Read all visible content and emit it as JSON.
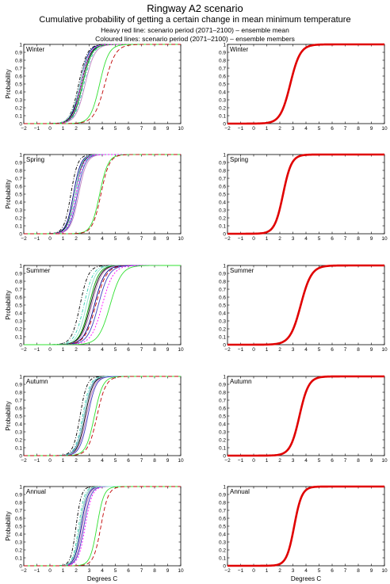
{
  "header": {
    "title": "Ringway A2 scenario",
    "subtitle": "Cumulative probability of getting a certain change in mean minimum temperature",
    "line1": "Heavy red line: scenario period (2071–2100) – ensemble mean",
    "line2": "Coloured lines: scenario period (2071–2100) – ensemble members"
  },
  "chart_data": {
    "type": "line",
    "xlabel": "Degrees C",
    "ylabel": "Probability",
    "xlim": [
      -2,
      10
    ],
    "ylim": [
      0,
      1
    ],
    "xticks": [
      "−2",
      "−1",
      "0",
      "1",
      "2",
      "3",
      "4",
      "5",
      "6",
      "7",
      "8",
      "9",
      "10"
    ],
    "yticks": [
      "0",
      "0.1",
      "0.2",
      "0.3",
      "0.4",
      "0.5",
      "0.6",
      "0.7",
      "0.8",
      "0.9",
      "1"
    ],
    "panels": [
      {
        "season": "Winter",
        "ensemble_mean": {
          "median": 2.8,
          "spread": 0.65,
          "color": "#e00000"
        },
        "members": [
          {
            "median": 2.3,
            "spread": 0.55,
            "color": "#00008b",
            "dash": ""
          },
          {
            "median": 2.4,
            "spread": 0.6,
            "color": "#000000",
            "dash": ""
          },
          {
            "median": 2.2,
            "spread": 0.55,
            "color": "#000000",
            "dash": "4,2,1,2"
          },
          {
            "median": 2.5,
            "spread": 0.58,
            "color": "#4040c0",
            "dash": ""
          },
          {
            "median": 2.6,
            "spread": 0.6,
            "color": "#30d0b0",
            "dash": "4,2,1,2"
          },
          {
            "median": 2.3,
            "spread": 0.6,
            "color": "#90e0d0",
            "dash": ""
          },
          {
            "median": 2.7,
            "spread": 0.62,
            "color": "#c080c0",
            "dash": ""
          },
          {
            "median": 2.5,
            "spread": 0.6,
            "color": "#00a000",
            "dash": ""
          },
          {
            "median": 2.4,
            "spread": 0.56,
            "color": "#ff00ff",
            "dash": "2,2"
          },
          {
            "median": 3.8,
            "spread": 0.6,
            "color": "#30e030",
            "dash": ""
          },
          {
            "median": 4.2,
            "spread": 0.7,
            "color": "#c00000",
            "dash": "5,3"
          }
        ]
      },
      {
        "season": "Spring",
        "ensemble_mean": {
          "median": 2.25,
          "spread": 0.55,
          "color": "#e00000"
        },
        "members": [
          {
            "median": 1.6,
            "spread": 0.45,
            "color": "#000000",
            "dash": "4,2,1,2"
          },
          {
            "median": 1.8,
            "spread": 0.48,
            "color": "#00008b",
            "dash": ""
          },
          {
            "median": 1.9,
            "spread": 0.5,
            "color": "#000000",
            "dash": ""
          },
          {
            "median": 2.0,
            "spread": 0.5,
            "color": "#30d0b0",
            "dash": "4,2,1,2"
          },
          {
            "median": 2.1,
            "spread": 0.5,
            "color": "#4040c0",
            "dash": ""
          },
          {
            "median": 2.2,
            "spread": 0.52,
            "color": "#c080c0",
            "dash": ""
          },
          {
            "median": 1.9,
            "spread": 0.46,
            "color": "#90e0d0",
            "dash": ""
          },
          {
            "median": 2.0,
            "spread": 0.48,
            "color": "#ff00ff",
            "dash": "2,2"
          },
          {
            "median": 3.8,
            "spread": 0.55,
            "color": "#30e030",
            "dash": ""
          },
          {
            "median": 3.9,
            "spread": 0.55,
            "color": "#c00000",
            "dash": "5,3"
          }
        ]
      },
      {
        "season": "Summer",
        "ensemble_mean": {
          "median": 3.6,
          "spread": 0.7,
          "color": "#e00000"
        },
        "members": [
          {
            "median": 2.3,
            "spread": 0.55,
            "color": "#000000",
            "dash": "4,2,1,2"
          },
          {
            "median": 2.6,
            "spread": 0.6,
            "color": "#30d0b0",
            "dash": "4,2,1,2"
          },
          {
            "median": 2.8,
            "spread": 0.6,
            "color": "#90e0d0",
            "dash": ""
          },
          {
            "median": 3.0,
            "spread": 0.62,
            "color": "#00a000",
            "dash": ""
          },
          {
            "median": 3.1,
            "spread": 0.65,
            "color": "#000000",
            "dash": ""
          },
          {
            "median": 3.2,
            "spread": 0.65,
            "color": "#c080c0",
            "dash": ""
          },
          {
            "median": 3.4,
            "spread": 0.68,
            "color": "#00008b",
            "dash": ""
          },
          {
            "median": 3.5,
            "spread": 0.7,
            "color": "#c00000",
            "dash": "5,3"
          },
          {
            "median": 3.7,
            "spread": 0.7,
            "color": "#4040c0",
            "dash": ""
          },
          {
            "median": 4.0,
            "spread": 0.72,
            "color": "#ff00ff",
            "dash": "2,2"
          },
          {
            "median": 4.6,
            "spread": 0.75,
            "color": "#30e030",
            "dash": ""
          }
        ]
      },
      {
        "season": "Autumn",
        "ensemble_mean": {
          "median": 3.5,
          "spread": 0.6,
          "color": "#e00000"
        },
        "members": [
          {
            "median": 2.3,
            "spread": 0.45,
            "color": "#000000",
            "dash": "4,2,1,2"
          },
          {
            "median": 2.5,
            "spread": 0.48,
            "color": "#30d0b0",
            "dash": "4,2,1,2"
          },
          {
            "median": 2.6,
            "spread": 0.5,
            "color": "#00008b",
            "dash": ""
          },
          {
            "median": 2.7,
            "spread": 0.5,
            "color": "#000000",
            "dash": ""
          },
          {
            "median": 2.8,
            "spread": 0.52,
            "color": "#c080c0",
            "dash": ""
          },
          {
            "median": 2.6,
            "spread": 0.48,
            "color": "#90e0d0",
            "dash": ""
          },
          {
            "median": 2.9,
            "spread": 0.52,
            "color": "#4040c0",
            "dash": ""
          },
          {
            "median": 3.4,
            "spread": 0.55,
            "color": "#30e030",
            "dash": ""
          },
          {
            "median": 3.6,
            "spread": 0.58,
            "color": "#c00000",
            "dash": "5,3"
          }
        ]
      },
      {
        "season": "Annual",
        "ensemble_mean": {
          "median": 3.1,
          "spread": 0.5,
          "color": "#e00000"
        },
        "members": [
          {
            "median": 2.0,
            "spread": 0.35,
            "color": "#000000",
            "dash": "4,2,1,2"
          },
          {
            "median": 2.2,
            "spread": 0.38,
            "color": "#30d0b0",
            "dash": "4,2,1,2"
          },
          {
            "median": 2.3,
            "spread": 0.4,
            "color": "#000000",
            "dash": ""
          },
          {
            "median": 2.4,
            "spread": 0.42,
            "color": "#00008b",
            "dash": ""
          },
          {
            "median": 2.5,
            "spread": 0.42,
            "color": "#c080c0",
            "dash": ""
          },
          {
            "median": 2.6,
            "spread": 0.44,
            "color": "#4040c0",
            "dash": ""
          },
          {
            "median": 2.7,
            "spread": 0.45,
            "color": "#ff00ff",
            "dash": "2,2"
          },
          {
            "median": 2.3,
            "spread": 0.4,
            "color": "#90e0d0",
            "dash": ""
          },
          {
            "median": 3.6,
            "spread": 0.45,
            "color": "#30e030",
            "dash": ""
          },
          {
            "median": 3.9,
            "spread": 0.48,
            "color": "#c00000",
            "dash": "5,3"
          }
        ]
      }
    ]
  }
}
